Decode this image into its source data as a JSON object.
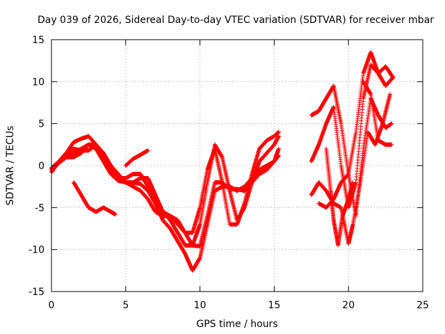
{
  "chart_data": {
    "type": "scatter",
    "title": "Day 039 of 2026, Sidereal Day-to-day VTEC variation (SDTVAR) for receiver mbar",
    "xlabel": "GPS time / hours",
    "ylabel": "SDTVAR / TECUs",
    "xlim": [
      0,
      25
    ],
    "ylim": [
      -15,
      15
    ],
    "x_ticks": [
      "0",
      "5",
      "10",
      "15",
      "20",
      "25"
    ],
    "y_ticks": [
      "15",
      "10",
      "5",
      "0",
      "-5",
      "-10",
      "-15"
    ],
    "x_tick_values": [
      0,
      5,
      10,
      15,
      20,
      25
    ],
    "y_tick_values": [
      15,
      10,
      5,
      0,
      -5,
      -10,
      -15
    ],
    "grid": true,
    "marker": "+",
    "color": "#ff0000",
    "series": [
      {
        "x": [
          0.0,
          0.5,
          1.0,
          1.5,
          2.0,
          2.5,
          3.0,
          3.5,
          4.0,
          4.5,
          5.0,
          5.5,
          6.0,
          6.5,
          7.0,
          7.5,
          8.0,
          8.5,
          9.0,
          9.5,
          10.0,
          10.5,
          11.0,
          11.5,
          12.0,
          12.5,
          13.0,
          13.5,
          14.0,
          14.5,
          15.0,
          15.3
        ],
        "y": [
          -0.5,
          0.3,
          1.0,
          1.5,
          2.0,
          2.5,
          2.0,
          0.5,
          -1.0,
          -1.8,
          -2.0,
          -2.0,
          -2.2,
          -3.0,
          -4.5,
          -5.5,
          -6.0,
          -7.0,
          -8.0,
          -9.5,
          -9.6,
          -6.0,
          -2.0,
          -2.0,
          -2.8,
          -2.8,
          -3.0,
          -2.0,
          -1.0,
          -0.5,
          0.5,
          1.2
        ]
      },
      {
        "x": [
          0.0,
          0.5,
          1.0,
          1.5,
          2.0,
          2.5,
          3.0,
          3.5,
          4.0,
          4.5,
          5.0,
          5.5,
          6.0,
          6.5,
          7.0,
          7.5,
          8.0,
          8.5,
          9.0,
          9.5,
          10.0,
          10.5,
          11.0,
          11.5,
          12.0,
          12.5,
          13.0,
          13.5,
          14.0,
          14.5,
          15.0,
          15.3
        ],
        "y": [
          -0.3,
          0.5,
          1.5,
          2.8,
          3.2,
          3.5,
          2.5,
          1.0,
          -0.5,
          -1.5,
          -1.5,
          -1.0,
          -1.0,
          -2.5,
          -4.5,
          -6.5,
          -7.5,
          -9.0,
          -10.5,
          -12.5,
          -11.0,
          -7.0,
          -3.0,
          -2.5,
          -2.5,
          -3.0,
          -2.5,
          -1.5,
          -0.5,
          0.0,
          0.5,
          2.0
        ]
      },
      {
        "x": [
          0.0,
          0.5,
          1.0,
          1.5,
          2.0,
          2.5,
          3.0,
          3.5,
          4.0,
          4.5,
          5.0,
          5.5,
          6.0,
          6.5,
          7.0,
          7.5,
          8.0,
          8.5,
          9.0,
          9.5,
          10.0,
          10.5,
          11.0,
          11.5,
          12.0,
          12.5,
          13.0,
          13.5,
          14.0,
          14.5,
          15.0,
          15.3
        ],
        "y": [
          -0.8,
          0.5,
          1.5,
          2.0,
          1.8,
          1.8,
          2.5,
          1.5,
          0.0,
          -1.0,
          -2.0,
          -2.0,
          -1.5,
          -1.5,
          -3.5,
          -5.5,
          -6.5,
          -8.0,
          -9.5,
          -9.5,
          -7.0,
          -2.0,
          2.5,
          1.0,
          -3.0,
          -6.5,
          -5.0,
          -2.0,
          0.5,
          1.5,
          2.5,
          3.5
        ]
      },
      {
        "x": [
          0.0,
          0.5,
          1.0,
          1.5,
          2.0,
          2.5,
          3.0,
          3.5,
          4.0,
          4.5,
          5.0,
          5.5,
          6.0,
          6.5,
          7.0,
          7.5,
          8.0,
          8.5,
          9.0,
          9.5,
          10.0,
          10.5,
          11.0,
          11.5,
          12.0,
          12.5,
          13.0,
          13.5,
          14.0,
          14.5,
          15.0,
          15.3
        ],
        "y": [
          -0.5,
          0.5,
          1.0,
          1.0,
          1.5,
          2.5,
          2.5,
          1.0,
          -0.8,
          -1.5,
          -2.0,
          -2.5,
          -3.0,
          -4.0,
          -5.5,
          -6.0,
          -6.0,
          -6.5,
          -8.0,
          -8.0,
          -5.0,
          -0.5,
          2.0,
          -2.0,
          -7.0,
          -7.0,
          -4.5,
          -1.0,
          2.0,
          3.0,
          3.5,
          4.0
        ]
      },
      {
        "x": [
          1.5,
          2.0,
          2.5,
          3.0,
          3.5,
          4.0,
          4.3
        ],
        "y": [
          -2.0,
          -3.5,
          -5.0,
          -5.5,
          -5.0,
          -5.5,
          -5.8
        ]
      },
      {
        "x": [
          5.0,
          5.5,
          6.0,
          6.5
        ],
        "y": [
          0.0,
          0.8,
          1.3,
          1.8
        ]
      },
      {
        "x": [
          17.5,
          17.8,
          18.0,
          18.5,
          19.0,
          19.5,
          20.0,
          20.5,
          21.0,
          21.5,
          22.0,
          22.5,
          23.0
        ],
        "y": [
          6.0,
          6.3,
          6.5,
          8.0,
          9.5,
          5.0,
          -1.0,
          4.0,
          11.0,
          13.5,
          11.0,
          9.5,
          10.5
        ]
      },
      {
        "x": [
          17.5,
          18.0,
          18.5,
          19.0,
          19.5,
          20.0,
          20.5,
          21.0,
          21.5,
          22.0,
          22.5,
          23.0
        ],
        "y": [
          0.5,
          2.5,
          5.0,
          7.0,
          0.0,
          -5.0,
          -2.0,
          8.0,
          12.0,
          11.0,
          11.8,
          10.5
        ]
      },
      {
        "x": [
          17.5,
          18.0,
          18.5,
          19.0,
          19.5,
          20.0,
          20.3,
          20.8,
          21.3,
          21.8,
          22.3,
          22.8
        ],
        "y": [
          -3.5,
          -2.0,
          -3.0,
          -4.5,
          -5.0,
          -9.3,
          -7.0,
          -2.0,
          4.0,
          2.5,
          5.0,
          8.5
        ]
      },
      {
        "x": [
          18.0,
          18.5,
          19.0,
          19.5,
          20.0,
          20.5,
          21.0,
          21.5,
          22.0,
          22.5,
          22.9
        ],
        "y": [
          -4.5,
          -5.0,
          -4.0,
          -2.0,
          -1.0,
          -6.0,
          2.0,
          8.0,
          6.0,
          4.5,
          5.0
        ]
      },
      {
        "x": [
          21.0,
          21.5,
          22.0,
          22.5,
          22.9
        ],
        "y": [
          10.0,
          8.5,
          3.0,
          2.5,
          2.5
        ]
      },
      {
        "x": [
          18.5,
          18.8,
          19.0,
          19.3,
          19.6,
          20.0,
          20.3
        ],
        "y": [
          2.0,
          -3.0,
          -6.5,
          -9.5,
          -6.0,
          -4.0,
          -2.0
        ]
      }
    ]
  }
}
